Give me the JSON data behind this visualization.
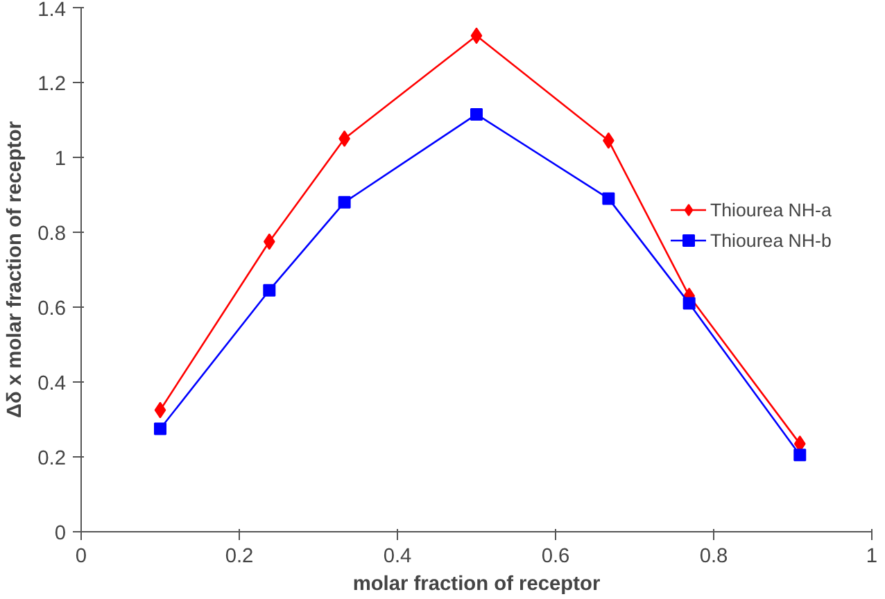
{
  "chart_data": {
    "type": "line",
    "xlabel": "molar fraction of receptor",
    "ylabel": "Δδ x molar fraction of receptor",
    "x": [
      0.1,
      0.238,
      0.333,
      0.5,
      0.667,
      0.769,
      0.909
    ],
    "series": [
      {
        "name": "Thiourea NH-a",
        "color": "#ff0000",
        "marker": "diamond",
        "values": [
          0.325,
          0.775,
          1.05,
          1.325,
          1.045,
          0.63,
          0.235
        ]
      },
      {
        "name": "Thiourea NH-b",
        "color": "#0000ff",
        "marker": "square",
        "values": [
          0.275,
          0.645,
          0.88,
          1.115,
          0.89,
          0.61,
          0.205
        ]
      }
    ],
    "xlim": [
      0,
      1
    ],
    "xticks": [
      0,
      0.2,
      0.4,
      0.6,
      0.8,
      1
    ],
    "ylim": [
      0,
      1.4
    ],
    "yticks": [
      0,
      0.2,
      0.4,
      0.6,
      0.8,
      1,
      1.2,
      1.4
    ],
    "grid": false,
    "legend": "right",
    "line_style": "solid"
  }
}
